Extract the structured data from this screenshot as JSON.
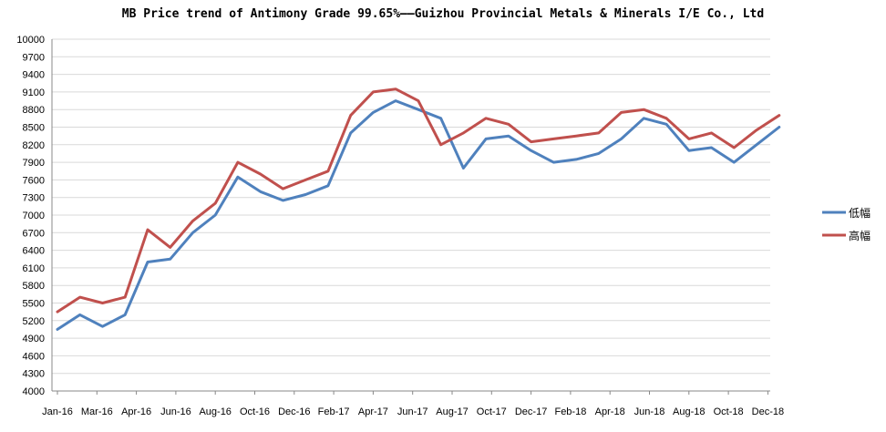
{
  "chart_data": {
    "type": "line",
    "title": "MB Price trend of Antimony Grade 99.65%——Guizhou Provincial Metals & Minerals I/E Co., Ltd",
    "xlabel": "",
    "ylabel": "",
    "ylim": [
      4000,
      10000
    ],
    "y_ticks": [
      4000,
      4300,
      4600,
      4900,
      5200,
      5500,
      5800,
      6100,
      6400,
      6700,
      7000,
      7300,
      7600,
      7900,
      8200,
      8500,
      8800,
      9100,
      9400,
      9700,
      10000
    ],
    "x_ticks": [
      "Jan-16",
      "Mar-16",
      "Apr-16",
      "Jun-16",
      "Aug-16",
      "Oct-16",
      "Dec-16",
      "Feb-17",
      "Apr-17",
      "Jun-17",
      "Aug-17",
      "Oct-17",
      "Dec-17",
      "Feb-18",
      "Apr-18",
      "Jun-18",
      "Aug-18",
      "Oct-18",
      "Dec-18"
    ],
    "grid": true,
    "legend_position": "right",
    "x": [
      "Jan-16",
      "Feb-16",
      "Mar-16",
      "Apr-16",
      "May-16",
      "Jun-16",
      "Jul-16",
      "Aug-16",
      "Sep-16",
      "Oct-16",
      "Nov-16",
      "Dec-16",
      "Jan-17",
      "Feb-17",
      "Mar-17",
      "Apr-17",
      "May-17",
      "Jun-17",
      "Jul-17",
      "Aug-17",
      "Sep-17",
      "Oct-17",
      "Nov-17",
      "Dec-17",
      "Jan-18",
      "Feb-18",
      "Mar-18",
      "Apr-18",
      "May-18",
      "Jun-18",
      "Jul-18",
      "Aug-18",
      "Sep-18"
    ],
    "series": [
      {
        "name": "低幅",
        "color": "#4F81BD",
        "values": [
          5050,
          5300,
          5100,
          5300,
          6200,
          6250,
          6700,
          7000,
          7650,
          7400,
          7250,
          7350,
          7500,
          8400,
          8750,
          8950,
          8800,
          8650,
          7800,
          8300,
          8350,
          8100,
          7900,
          7950,
          8050,
          8300,
          8650,
          8550,
          8100,
          8150,
          7900,
          8200,
          8500
        ]
      },
      {
        "name": "高幅",
        "color": "#C0504D",
        "values": [
          5350,
          5600,
          5500,
          5600,
          6750,
          6450,
          6900,
          7200,
          7900,
          7700,
          7450,
          7600,
          7750,
          8700,
          9100,
          9150,
          8950,
          8200,
          8400,
          8650,
          8550,
          8250,
          8300,
          8350,
          8400,
          8750,
          8800,
          8650,
          8300,
          8400,
          8150,
          8450,
          8700
        ]
      }
    ]
  }
}
